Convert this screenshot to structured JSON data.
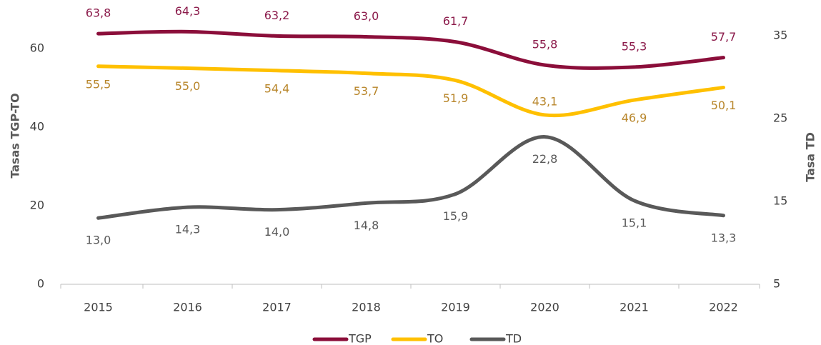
{
  "chart_data": {
    "type": "line",
    "categories": [
      "2015",
      "2016",
      "2017",
      "2018",
      "2019",
      "2020",
      "2021",
      "2022"
    ],
    "series": [
      {
        "name": "TGP",
        "color": "#8b0e3a",
        "label_color": "#8b1a4a",
        "values": [
          63.8,
          64.3,
          63.2,
          63.0,
          61.7,
          55.8,
          55.3,
          57.7
        ],
        "value_labels": [
          "63,8",
          "64,3",
          "63,2",
          "63,0",
          "61,7",
          "55,8",
          "55,3",
          "57,7"
        ]
      },
      {
        "name": "TO",
        "color": "#ffc000",
        "label_color": "#b8862b",
        "values": [
          55.5,
          55.0,
          54.4,
          53.7,
          51.9,
          43.1,
          46.9,
          50.1
        ],
        "value_labels": [
          "55,5",
          "55,0",
          "54,4",
          "53,7",
          "51,9",
          "43,1",
          "46,9",
          "50,1"
        ]
      },
      {
        "name": "TD",
        "color": "#595959",
        "label_color": "#595959",
        "axis": "y2",
        "values": [
          13.0,
          14.3,
          14.0,
          14.8,
          15.9,
          22.8,
          15.1,
          13.3
        ],
        "value_labels": [
          "13,0",
          "14,3",
          "14,0",
          "14,8",
          "15,9",
          "22,8",
          "15,1",
          "13,3"
        ]
      }
    ],
    "ylabel": "Tasas  TGP-TO",
    "y2label": "Tasa TD",
    "ylim": [
      0,
      70
    ],
    "yticks": [
      0,
      20,
      40,
      60
    ],
    "y2lim": [
      5,
      38.2
    ],
    "y2ticks": [
      5,
      15,
      25,
      35
    ],
    "legend": "bottom"
  }
}
